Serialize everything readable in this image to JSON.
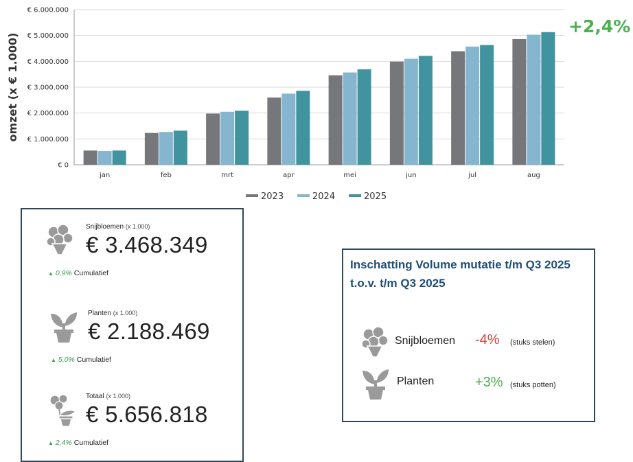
{
  "chart_data": {
    "type": "bar",
    "categories": [
      "jan",
      "feb",
      "mrt",
      "apr",
      "mei",
      "jun",
      "jul",
      "aug"
    ],
    "series": [
      {
        "name": "2023",
        "color": "#75777b",
        "values": [
          550000,
          1230000,
          1980000,
          2600000,
          3460000,
          3990000,
          4390000,
          4860000
        ]
      },
      {
        "name": "2024",
        "color": "#86b6cf",
        "values": [
          530000,
          1270000,
          2050000,
          2750000,
          3570000,
          4100000,
          4570000,
          5030000
        ]
      },
      {
        "name": "2025",
        "color": "#41949f",
        "values": [
          550000,
          1320000,
          2090000,
          2860000,
          3690000,
          4210000,
          4630000,
          5130000
        ]
      }
    ],
    "ylabel": "omzet (x € 1.000)",
    "ylim": [
      0,
      6000000
    ],
    "yticks": [
      "€ 0",
      "€ 1.000.000",
      "€ 2.000.000",
      "€ 3.000.000",
      "€ 4.000.000",
      "€ 5.000.000",
      "€ 6.000.000"
    ],
    "grid": true,
    "legend_position": "bottom"
  },
  "growth": "+2,4%",
  "kpis": [
    {
      "title": "Snijbloemen",
      "unit": "(x 1.000)",
      "value": "€ 3.468.349",
      "pct": "0,9%",
      "label": "Cumulatief",
      "icon": "flower-bouquet-icon"
    },
    {
      "title": "Planten",
      "unit": "(x 1.000)",
      "value": "€ 2.188.469",
      "pct": "5,0%",
      "label": "Cumulatief",
      "icon": "potted-plant-icon"
    },
    {
      "title": "Totaal",
      "unit": "(x 1.000)",
      "value": "€ 5.656.818",
      "pct": "2,4%",
      "label": "Cumulatief",
      "icon": "flower-pot-icon"
    }
  ],
  "volume": {
    "title": "Inschatting Volume mutatie t/m Q3 2025 t.o.v. t/m Q3 2025",
    "rows": [
      {
        "label": "Snijbloemen",
        "pct": "-4%",
        "color": "#d64040",
        "note": "(stuks stelen)",
        "icon": "flower-bouquet-icon"
      },
      {
        "label": "Planten",
        "pct": "+3%",
        "color": "#4caf50",
        "note": "(stuks potten)",
        "icon": "potted-plant-icon"
      }
    ]
  }
}
